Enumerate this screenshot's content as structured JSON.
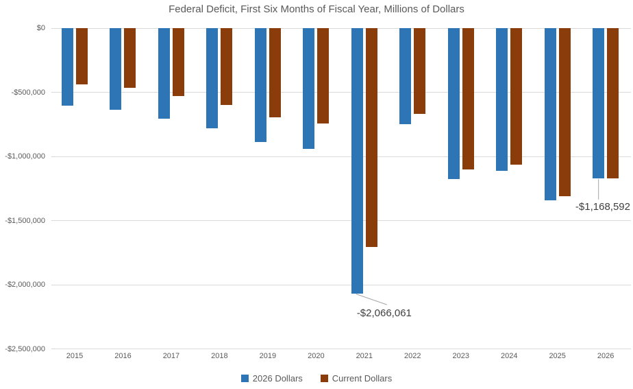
{
  "chart_data": {
    "type": "bar",
    "title": "Federal Deficit, First Six Months of Fiscal Year, Millions of Dollars",
    "categories": [
      "2015",
      "2016",
      "2017",
      "2018",
      "2019",
      "2020",
      "2021",
      "2022",
      "2023",
      "2024",
      "2025",
      "2026"
    ],
    "series": [
      {
        "name": "2026 Dollars",
        "color": "#2E75B6",
        "values": [
          -604000,
          -634000,
          -704000,
          -779000,
          -885000,
          -937000,
          -2066061,
          -747000,
          -1177000,
          -1113000,
          -1338000,
          -1168592
        ]
      },
      {
        "name": "Current Dollars",
        "color": "#8A3C0B",
        "values": [
          -439000,
          -461000,
          -527000,
          -600000,
          -691000,
          -744000,
          -1706000,
          -668000,
          -1101000,
          -1065000,
          -1307000,
          -1168592
        ]
      }
    ],
    "ylabel": "",
    "xlabel": "",
    "ylim": [
      -2500000,
      0
    ],
    "grid": true,
    "legend_position": "bottom",
    "y_ticks": [
      {
        "value": 0,
        "label": "$0"
      },
      {
        "value": -500000,
        "label": "-$500,000"
      },
      {
        "value": -1000000,
        "label": "-$1,000,000"
      },
      {
        "value": -1500000,
        "label": "-$1,500,000"
      },
      {
        "value": -2000000,
        "label": "-$2,000,000"
      },
      {
        "value": -2500000,
        "label": "-$2,500,000"
      }
    ],
    "annotations": [
      {
        "series": "2026 Dollars",
        "category": "2021",
        "label": "-$2,066,061"
      },
      {
        "series": "2026 Dollars",
        "category": "2026",
        "label": "-$1,168,592"
      }
    ]
  },
  "colors": {
    "background": "#FFFFFF",
    "gridline": "#D9D9D9",
    "axis_text": "#595959",
    "title_text": "#595959",
    "annotation_text": "#404040",
    "leader_line": "#A6A6A6"
  }
}
